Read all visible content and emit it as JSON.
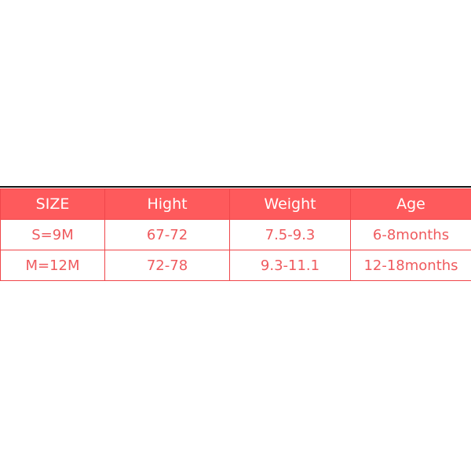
{
  "table": {
    "headers": [
      "SIZE",
      "Hight",
      "Weight",
      "Age"
    ],
    "rows": [
      [
        "S=9M",
        "67-72",
        "7.5-9.3",
        "6-8months"
      ],
      [
        "M=12M",
        "72-78",
        "9.3-11.1",
        "12-18months"
      ]
    ]
  },
  "colors": {
    "header_bg": "#fe5a5c",
    "text": "#ef5a5e",
    "border": "#f0464a"
  }
}
